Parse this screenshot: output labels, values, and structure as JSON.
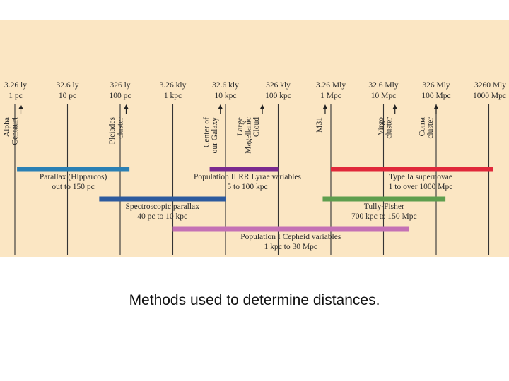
{
  "scale": [
    {
      "top": "3.26 ly",
      "bottom": "1 pc"
    },
    {
      "top": "32.6 ly",
      "bottom": "10 pc"
    },
    {
      "top": "326 ly",
      "bottom": "100 pc"
    },
    {
      "top": "3.26 kly",
      "bottom": "1 kpc"
    },
    {
      "top": "32.6 kly",
      "bottom": "10 kpc"
    },
    {
      "top": "326 kly",
      "bottom": "100 kpc"
    },
    {
      "top": "3.26 Mly",
      "bottom": "1 Mpc"
    },
    {
      "top": "32.6 Mly",
      "bottom": "10 Mpc"
    },
    {
      "top": "326 Mly",
      "bottom": "100 Mpc"
    },
    {
      "top": "3260 Mly",
      "bottom": "1000 Mpc"
    }
  ],
  "objects": [
    {
      "lines": [
        "Alpha",
        "Centauri"
      ],
      "pc": 1.3
    },
    {
      "lines": [
        "Pleiades",
        "cluster"
      ],
      "pc": 130
    },
    {
      "lines": [
        "Center of",
        "our Galaxy"
      ],
      "pc": 8000
    },
    {
      "lines": [
        "Large",
        "Magellanic",
        "Cloud"
      ],
      "pc": 50000
    },
    {
      "lines": [
        "M31"
      ],
      "pc": 780000
    },
    {
      "lines": [
        "Virgo",
        "cluster"
      ],
      "pc": 16500000
    },
    {
      "lines": [
        "Coma",
        "cluster"
      ],
      "pc": 100000000
    }
  ],
  "methods": [
    {
      "label": "Parallax (Hipparcos)",
      "range_text": "out to 150 pc",
      "from_pc": 1.1,
      "to_pc": 150,
      "color": "#2a80b4"
    },
    {
      "label": "Population II RR Lyrae variables",
      "range_text": "5 to 100 kpc",
      "from_pc": 5000,
      "to_pc": 100000,
      "color": "#7a2a8f"
    },
    {
      "label": "Type Ia supernovae",
      "range_text": "1 to over 1000 Mpc",
      "from_pc": 1000000,
      "to_pc": 1200000000,
      "color": "#e0283a"
    },
    {
      "label": "Spectroscopic parallax",
      "range_text": "40 pc to 10 kpc",
      "from_pc": 40,
      "to_pc": 10000,
      "color": "#2c5a9e"
    },
    {
      "label": "Tully-Fisher",
      "range_text": "700 kpc to 150 Mpc",
      "from_pc": 700000,
      "to_pc": 150000000,
      "color": "#5e9e4e"
    },
    {
      "label": "Population I Cepheid variables",
      "range_text": "1 kpc to 30 Mpc",
      "from_pc": 1000,
      "to_pc": 30000000,
      "color": "#c471b5"
    }
  ],
  "colors": {
    "panel": "#fbe6c3",
    "gridline": "#333333"
  },
  "caption": "Methods used to determine distances."
}
